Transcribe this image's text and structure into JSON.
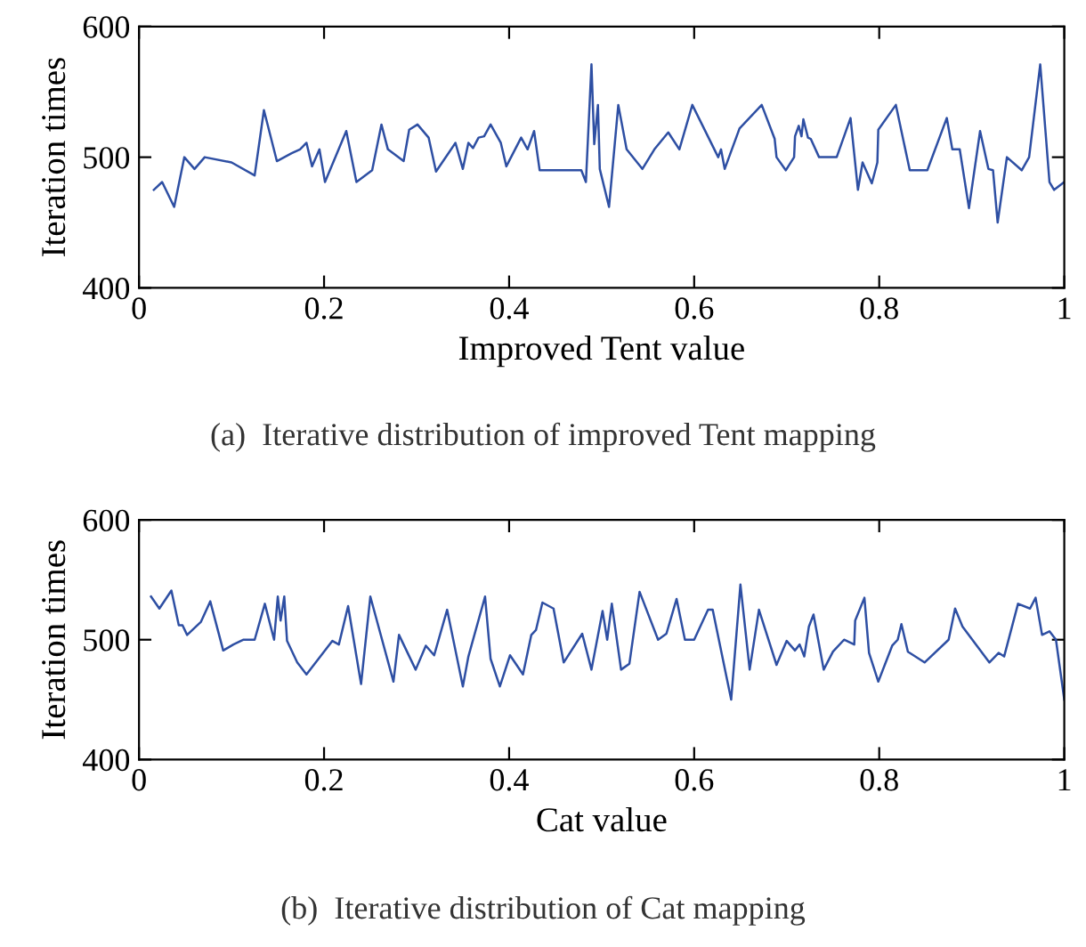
{
  "chart_data": [
    {
      "type": "line",
      "xlabel": "Improved Tent value",
      "ylabel": "Iteration times",
      "annotations": [
        "(a)  Iterative distribution of improved Tent mapping"
      ],
      "xlim": [
        0,
        1
      ],
      "ylim": [
        400,
        600
      ],
      "xticks": [
        0,
        0.2,
        0.4,
        0.6,
        0.8,
        1
      ],
      "yticks": [
        400,
        500,
        600
      ],
      "grid": false,
      "legend": false,
      "series": [
        {
          "color": "#2e4fa3",
          "x": [
            0.016,
            0.025,
            0.038,
            0.049,
            0.06,
            0.071,
            0.1,
            0.125,
            0.135,
            0.149,
            0.165,
            0.174,
            0.181,
            0.187,
            0.195,
            0.201,
            0.224,
            0.235,
            0.252,
            0.262,
            0.269,
            0.286,
            0.292,
            0.301,
            0.313,
            0.321,
            0.342,
            0.35,
            0.356,
            0.361,
            0.367,
            0.373,
            0.38,
            0.391,
            0.397,
            0.413,
            0.42,
            0.427,
            0.433,
            0.478,
            0.483,
            0.489,
            0.492,
            0.496,
            0.498,
            0.508,
            0.518,
            0.527,
            0.544,
            0.557,
            0.572,
            0.584,
            0.598,
            0.626,
            0.629,
            0.633,
            0.649,
            0.673,
            0.687,
            0.689,
            0.699,
            0.708,
            0.709,
            0.713,
            0.716,
            0.718,
            0.723,
            0.726,
            0.735,
            0.754,
            0.769,
            0.777,
            0.782,
            0.792,
            0.798,
            0.799,
            0.818,
            0.833,
            0.852,
            0.873,
            0.879,
            0.887,
            0.897,
            0.909,
            0.918,
            0.923,
            0.928,
            0.938,
            0.954,
            0.962,
            0.974,
            0.984,
            0.989,
            1.0
          ],
          "values": [
            475,
            481,
            462,
            500,
            491,
            500,
            496,
            486,
            536,
            497,
            503,
            506,
            511,
            493,
            506,
            481,
            520,
            481,
            490,
            525,
            506,
            497,
            521,
            525,
            515,
            489,
            511,
            491,
            511,
            507,
            515,
            516,
            525,
            511,
            493,
            515,
            506,
            520,
            490,
            490,
            481,
            571,
            510,
            540,
            491,
            462,
            540,
            506,
            491,
            506,
            519,
            506,
            540,
            500,
            506,
            491,
            522,
            540,
            514,
            500,
            490,
            500,
            516,
            524,
            516,
            529,
            515,
            514,
            500,
            500,
            530,
            475,
            496,
            480,
            496,
            521,
            540,
            490,
            490,
            530,
            506,
            506,
            461,
            520,
            491,
            490,
            450,
            500,
            490,
            500,
            571,
            481,
            475,
            481
          ]
        }
      ]
    },
    {
      "type": "line",
      "xlabel": "Cat value",
      "ylabel": "Iteration times",
      "annotations": [
        "(b)  Iterative distribution of Cat mapping"
      ],
      "xlim": [
        0,
        1
      ],
      "ylim": [
        400,
        600
      ],
      "xticks": [
        0,
        0.2,
        0.4,
        0.6,
        0.8,
        1
      ],
      "yticks": [
        400,
        500,
        600
      ],
      "grid": false,
      "legend": false,
      "series": [
        {
          "color": "#2e4fa3",
          "x": [
            0.013,
            0.022,
            0.035,
            0.043,
            0.047,
            0.052,
            0.067,
            0.077,
            0.091,
            0.102,
            0.113,
            0.125,
            0.136,
            0.146,
            0.15,
            0.153,
            0.157,
            0.16,
            0.171,
            0.181,
            0.209,
            0.216,
            0.226,
            0.24,
            0.25,
            0.275,
            0.281,
            0.299,
            0.31,
            0.319,
            0.333,
            0.35,
            0.356,
            0.374,
            0.38,
            0.39,
            0.401,
            0.415,
            0.424,
            0.429,
            0.436,
            0.448,
            0.459,
            0.479,
            0.489,
            0.501,
            0.506,
            0.511,
            0.521,
            0.53,
            0.541,
            0.561,
            0.57,
            0.581,
            0.59,
            0.6,
            0.615,
            0.62,
            0.64,
            0.65,
            0.66,
            0.67,
            0.689,
            0.7,
            0.709,
            0.714,
            0.719,
            0.724,
            0.729,
            0.74,
            0.75,
            0.762,
            0.773,
            0.774,
            0.784,
            0.789,
            0.799,
            0.814,
            0.82,
            0.824,
            0.831,
            0.849,
            0.875,
            0.882,
            0.89,
            0.919,
            0.929,
            0.935,
            0.95,
            0.963,
            0.969,
            0.976,
            0.984,
            0.991,
            1.0
          ],
          "values": [
            536,
            526,
            541,
            512,
            512,
            504,
            515,
            532,
            491,
            496,
            500,
            500,
            530,
            500,
            536,
            516,
            536,
            499,
            481,
            471,
            499,
            496,
            528,
            463,
            536,
            465,
            504,
            475,
            495,
            487,
            525,
            461,
            486,
            536,
            484,
            461,
            487,
            471,
            504,
            508,
            531,
            526,
            481,
            505,
            475,
            524,
            500,
            530,
            475,
            480,
            540,
            500,
            505,
            534,
            500,
            500,
            525,
            525,
            450,
            546,
            475,
            525,
            479,
            499,
            491,
            496,
            486,
            511,
            521,
            475,
            490,
            500,
            496,
            516,
            535,
            489,
            465,
            495,
            500,
            513,
            490,
            481,
            500,
            526,
            511,
            481,
            489,
            486,
            530,
            526,
            535,
            504,
            507,
            500,
            450
          ]
        }
      ]
    }
  ]
}
